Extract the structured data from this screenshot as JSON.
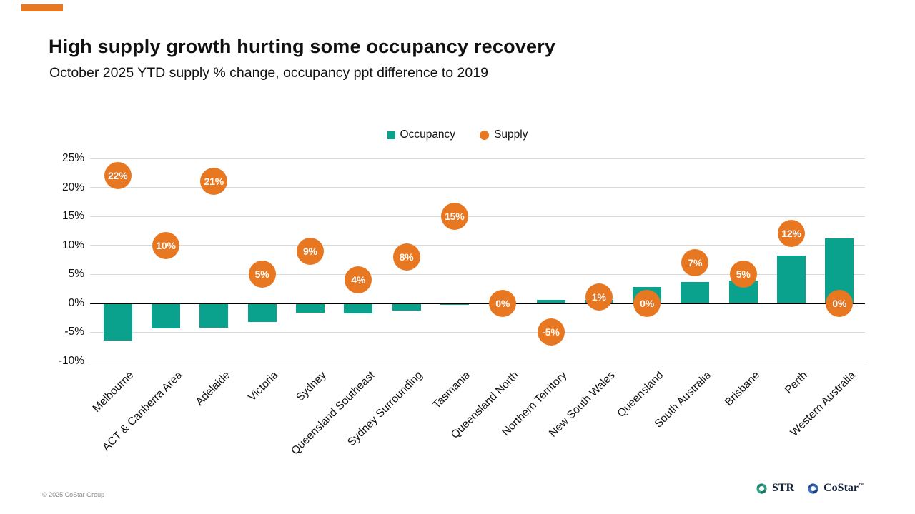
{
  "slide": {
    "title": "High supply growth hurting some occupancy recovery",
    "subtitle": "October 2025 YTD supply % change, occupancy ppt difference to 2019",
    "footer_copyright": "© 2025 CoStar Group",
    "accent_color": "#E87722"
  },
  "legend": [
    {
      "label": "Occupancy",
      "marker": "square",
      "color": "#0AA28C"
    },
    {
      "label": "Supply",
      "marker": "circle",
      "color": "#E87722"
    }
  ],
  "logos": {
    "str_label": "STR",
    "costar_label": "CoStar",
    "costar_tm": "™"
  },
  "colors": {
    "occupancy": "#0AA28C",
    "supply": "#E87722",
    "gridline": "#d9d9d9",
    "zero_line": "#000000",
    "marker_text": "#ffffff",
    "str_icon": [
      "#2E9B82",
      "#1B7A66",
      "#35A98E",
      "#23856F"
    ],
    "costar_icon": [
      "#2D66B5",
      "#1B3F7E",
      "#3A77C9",
      "#234E96"
    ]
  },
  "chart_data": {
    "type": "bar",
    "title": "",
    "xlabel": "",
    "ylabel": "",
    "categories": [
      "Melbourne",
      "ACT & Canberra Area",
      "Adelaide",
      "Victoria",
      "Sydney",
      "Queensland Southeast",
      "Sydney Surrounding",
      "Tasmania",
      "Queensland North",
      "Northern Territory",
      "New South Wales",
      "Queensland",
      "South Australia",
      "Brisbane",
      "Perth",
      "Western Australia"
    ],
    "series": [
      {
        "name": "Occupancy",
        "type": "bar",
        "values": [
          -6.5,
          -4.4,
          -4.3,
          -3.3,
          -1.7,
          -1.8,
          -1.3,
          -0.3,
          0.0,
          0.6,
          0.5,
          2.8,
          3.7,
          3.9,
          8.2,
          11.2
        ]
      },
      {
        "name": "Supply",
        "type": "scatter",
        "values": [
          22,
          10,
          21,
          5,
          9,
          4,
          8,
          15,
          0,
          -5,
          1,
          0,
          7,
          5,
          12,
          0
        ],
        "labels": [
          "22%",
          "10%",
          "21%",
          "5%",
          "9%",
          "4%",
          "8%",
          "15%",
          "0%",
          "-5%",
          "1%",
          "0%",
          "7%",
          "5%",
          "12%",
          "0%"
        ]
      }
    ],
    "ylim": [
      -10,
      25
    ],
    "ytick_step": 5,
    "yticks": [
      "25%",
      "20%",
      "15%",
      "10%",
      "5%",
      "0%",
      "-5%",
      "-10%"
    ],
    "grid": true,
    "legend_position": "top-center"
  }
}
